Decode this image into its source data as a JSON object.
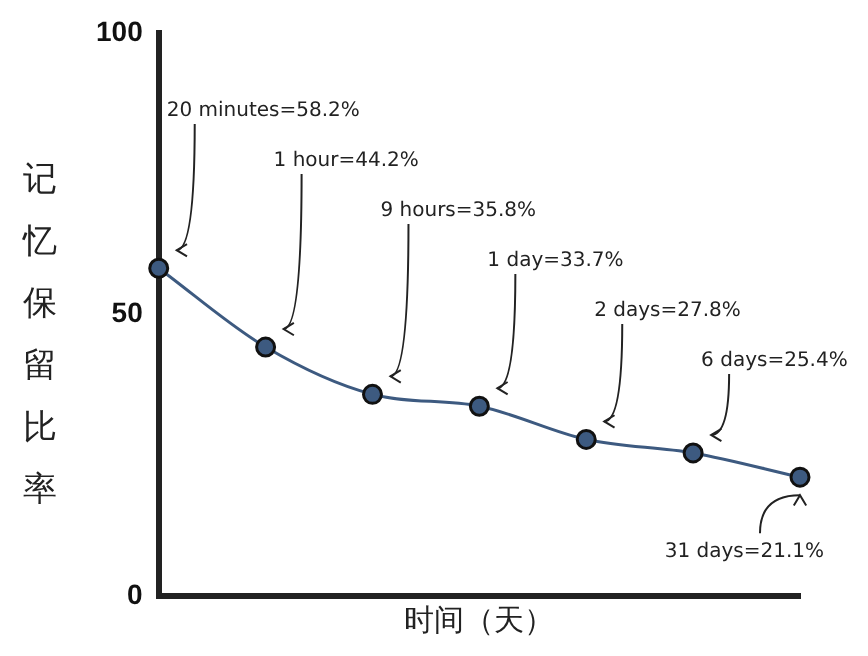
{
  "chart_data": {
    "type": "line",
    "xlabel": "时间（天）",
    "ylabel": "记忆保留比率",
    "categories": [
      null,
      null,
      null,
      null,
      null,
      null,
      null
    ],
    "series": [
      {
        "color": "#3d5a80",
        "values": [
          58.2,
          44.2,
          35.8,
          33.7,
          27.8,
          25.4,
          21.1
        ],
        "value_labels": [
          "20 minutes=58.2%",
          "1 hour=44.2%",
          "9 hours=35.8%",
          "1 day=33.7%",
          "2 days=27.8%",
          "6 days=25.4%",
          "31 days=21.1%"
        ]
      }
    ],
    "ylim": [
      0,
      100
    ],
    "yticks": [
      0,
      50,
      100
    ],
    "grid": false,
    "legend": false,
    "tick_labels": "y",
    "marker": "circle",
    "line_style": "solid"
  }
}
